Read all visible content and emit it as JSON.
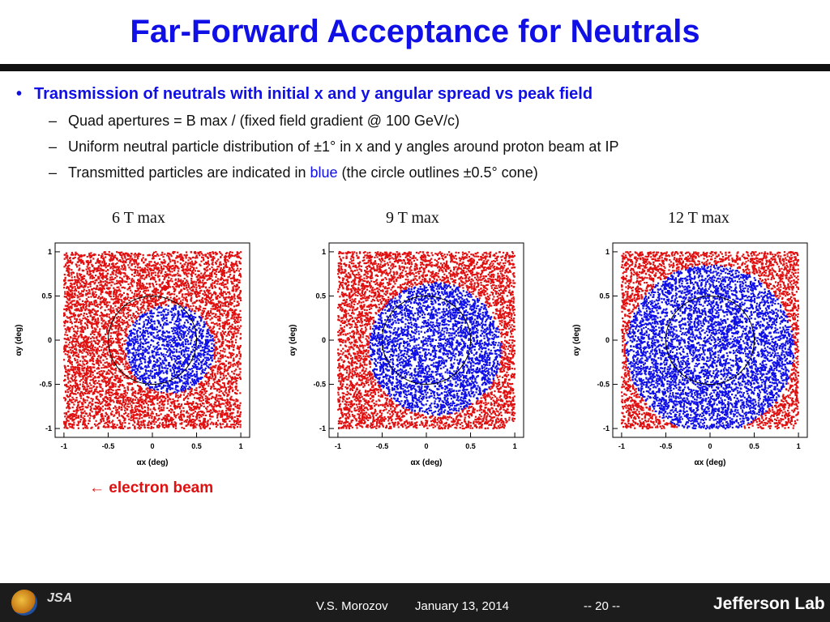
{
  "slide": {
    "title": "Far-Forward Acceptance for Neutrals",
    "bullet": "Transmission of neutrals with initial x and y angular spread vs peak field",
    "sub1": "Quad apertures = B max / (fixed field gradient @ 100 GeV/c)",
    "sub2": "Uniform neutral particle distribution of ±1° in x and y angles around proton beam at IP",
    "sub3_a": "Transmitted particles are indicated in ",
    "sub3_b": "blue",
    "sub3_c": " (the circle outlines ±0.5° cone)",
    "annotation": "← electron beam"
  },
  "footer": {
    "author": "V.S. Morozov",
    "date": "January 13, 2014",
    "page": "-- 20 --",
    "lab": "Jefferson Lab",
    "logo2_text": "JSA"
  },
  "colors": {
    "title": "#1010e6",
    "transmitted": "#1010e6",
    "lost": "#e01010"
  },
  "chart_data": [
    {
      "type": "scatter",
      "title": "6 T max",
      "xlabel": "αx (deg)",
      "ylabel": "αy (deg)",
      "xlim": [
        -1.1,
        1.1
      ],
      "ylim": [
        -1.1,
        1.1
      ],
      "xticks": [
        -1,
        -0.5,
        0,
        0.5,
        1
      ],
      "yticks": [
        -1,
        -0.5,
        0,
        0.5,
        1
      ],
      "tick_labels": [
        "-1",
        "-0.5",
        "0",
        "0.5",
        "1"
      ],
      "distribution": {
        "x_range": [
          -1,
          1
        ],
        "y_range": [
          -1,
          1
        ]
      },
      "transmitted_region": {
        "center": [
          0.2,
          -0.1
        ],
        "radius": 0.5
      },
      "reference_circle": {
        "center": [
          0,
          0
        ],
        "radius": 0.5
      }
    },
    {
      "type": "scatter",
      "title": "9 T max",
      "xlabel": "αx (deg)",
      "ylabel": "αy (deg)",
      "xlim": [
        -1.1,
        1.1
      ],
      "ylim": [
        -1.1,
        1.1
      ],
      "xticks": [
        -1,
        -0.5,
        0,
        0.5,
        1
      ],
      "yticks": [
        -1,
        -0.5,
        0,
        0.5,
        1
      ],
      "tick_labels": [
        "-1",
        "-0.5",
        "0",
        "0.5",
        "1"
      ],
      "distribution": {
        "x_range": [
          -1,
          1
        ],
        "y_range": [
          -1,
          1
        ]
      },
      "transmitted_region": {
        "center": [
          0.1,
          -0.1
        ],
        "radius": 0.75
      },
      "reference_circle": {
        "center": [
          0,
          0
        ],
        "radius": 0.5
      }
    },
    {
      "type": "scatter",
      "title": "12 T max",
      "xlabel": "αx (deg)",
      "ylabel": "αy (deg)",
      "xlim": [
        -1.1,
        1.1
      ],
      "ylim": [
        -1.1,
        1.1
      ],
      "xticks": [
        -1,
        -0.5,
        0,
        0.5,
        1
      ],
      "yticks": [
        -1,
        -0.5,
        0,
        0.5,
        1
      ],
      "tick_labels": [
        "-1",
        "-0.5",
        "0",
        "0.5",
        "1"
      ],
      "distribution": {
        "x_range": [
          -1,
          1
        ],
        "y_range": [
          -1,
          1
        ]
      },
      "transmitted_region": {
        "center": [
          0,
          -0.1
        ],
        "radius": 0.95
      },
      "reference_circle": {
        "center": [
          0,
          0
        ],
        "radius": 0.5
      }
    }
  ]
}
